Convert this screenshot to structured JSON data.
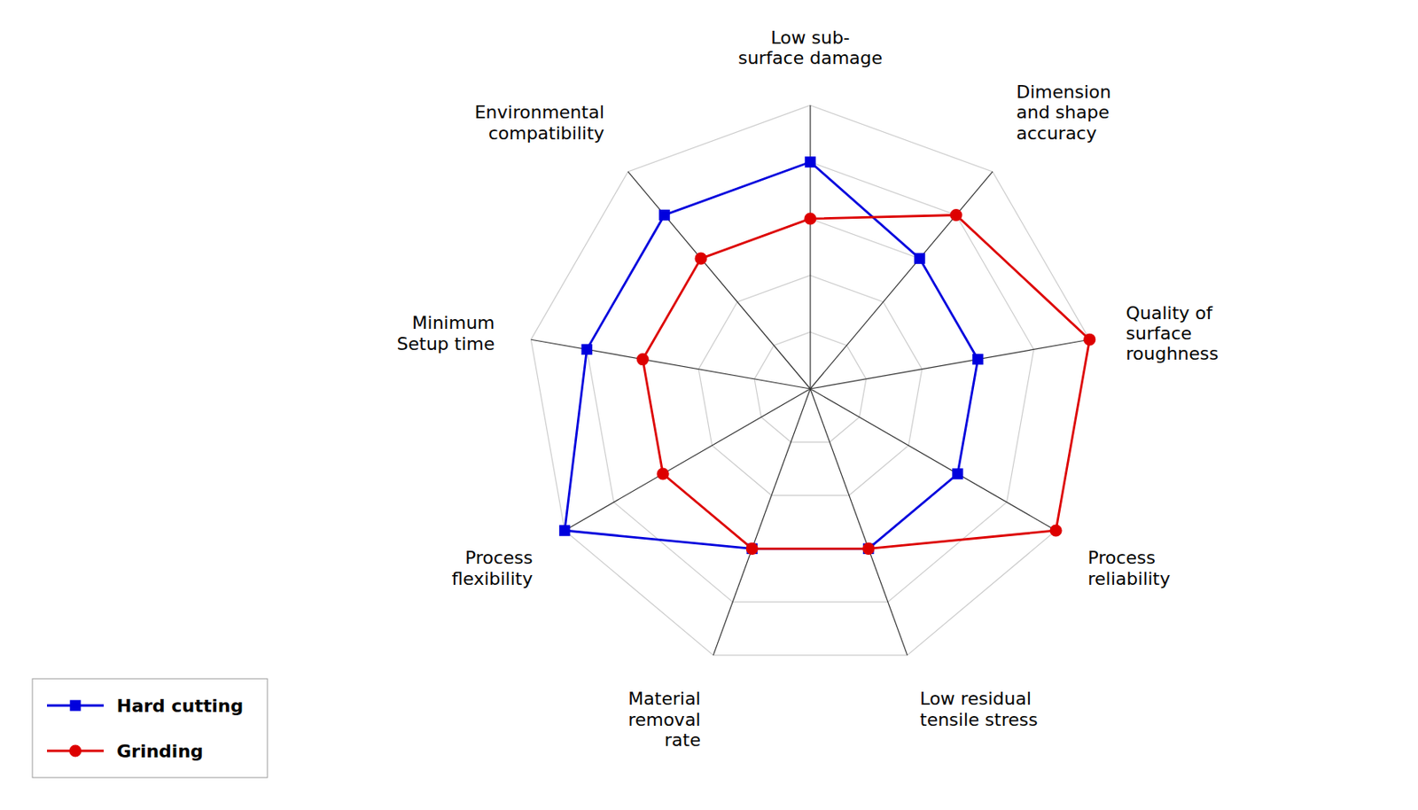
{
  "chart_data": {
    "type": "radar",
    "categories": [
      "Low sub-\nsurface damage",
      "Dimension\nand shape\naccuracy",
      "Quality of\nsurface\nroughness",
      "Process\nreliability",
      "Low residual\ntensile stress",
      "Material\nremoval\nrate",
      "Process\nflexibility",
      "Minimum\nSetup time",
      "Environmental\ncompatibility"
    ],
    "series": [
      {
        "name": "Hard cutting",
        "color": "#0000dd",
        "marker": "square",
        "values": [
          4,
          3,
          3,
          3,
          3,
          3,
          5,
          4,
          4
        ]
      },
      {
        "name": "Grinding",
        "color": "#dd0000",
        "marker": "circle",
        "values": [
          3,
          4,
          5,
          5,
          3,
          3,
          3,
          3,
          3
        ]
      }
    ],
    "ylim": [
      0,
      5
    ],
    "yticks": [
      1,
      2,
      3,
      4,
      5
    ],
    "grid": true,
    "tick_labels": false,
    "legend": "bottom-left"
  }
}
